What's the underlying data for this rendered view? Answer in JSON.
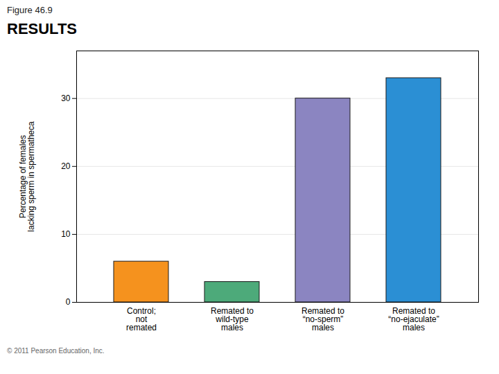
{
  "chart_data": {
    "type": "bar",
    "title": "RESULTS",
    "annotations": [
      "Figure 46.9",
      "© 2011 Pearson Education, Inc."
    ],
    "categories": [
      "Control;\nnot\nremated",
      "Remated to\nwild-type\nmales",
      "Remated to\n“no-sperm”\nmales",
      "Remated to\n“no-ejaculate”\nmales"
    ],
    "values": [
      6,
      3,
      30,
      33
    ],
    "colors": [
      "#F5921E",
      "#4DAA7A",
      "#8B85C1",
      "#2B8FD4"
    ],
    "ylabel": "Percentage of females\nlacking sperm in spermatheca",
    "ylim": [
      0,
      37
    ],
    "yticks": [
      0,
      10,
      20,
      30
    ],
    "grid": true
  }
}
